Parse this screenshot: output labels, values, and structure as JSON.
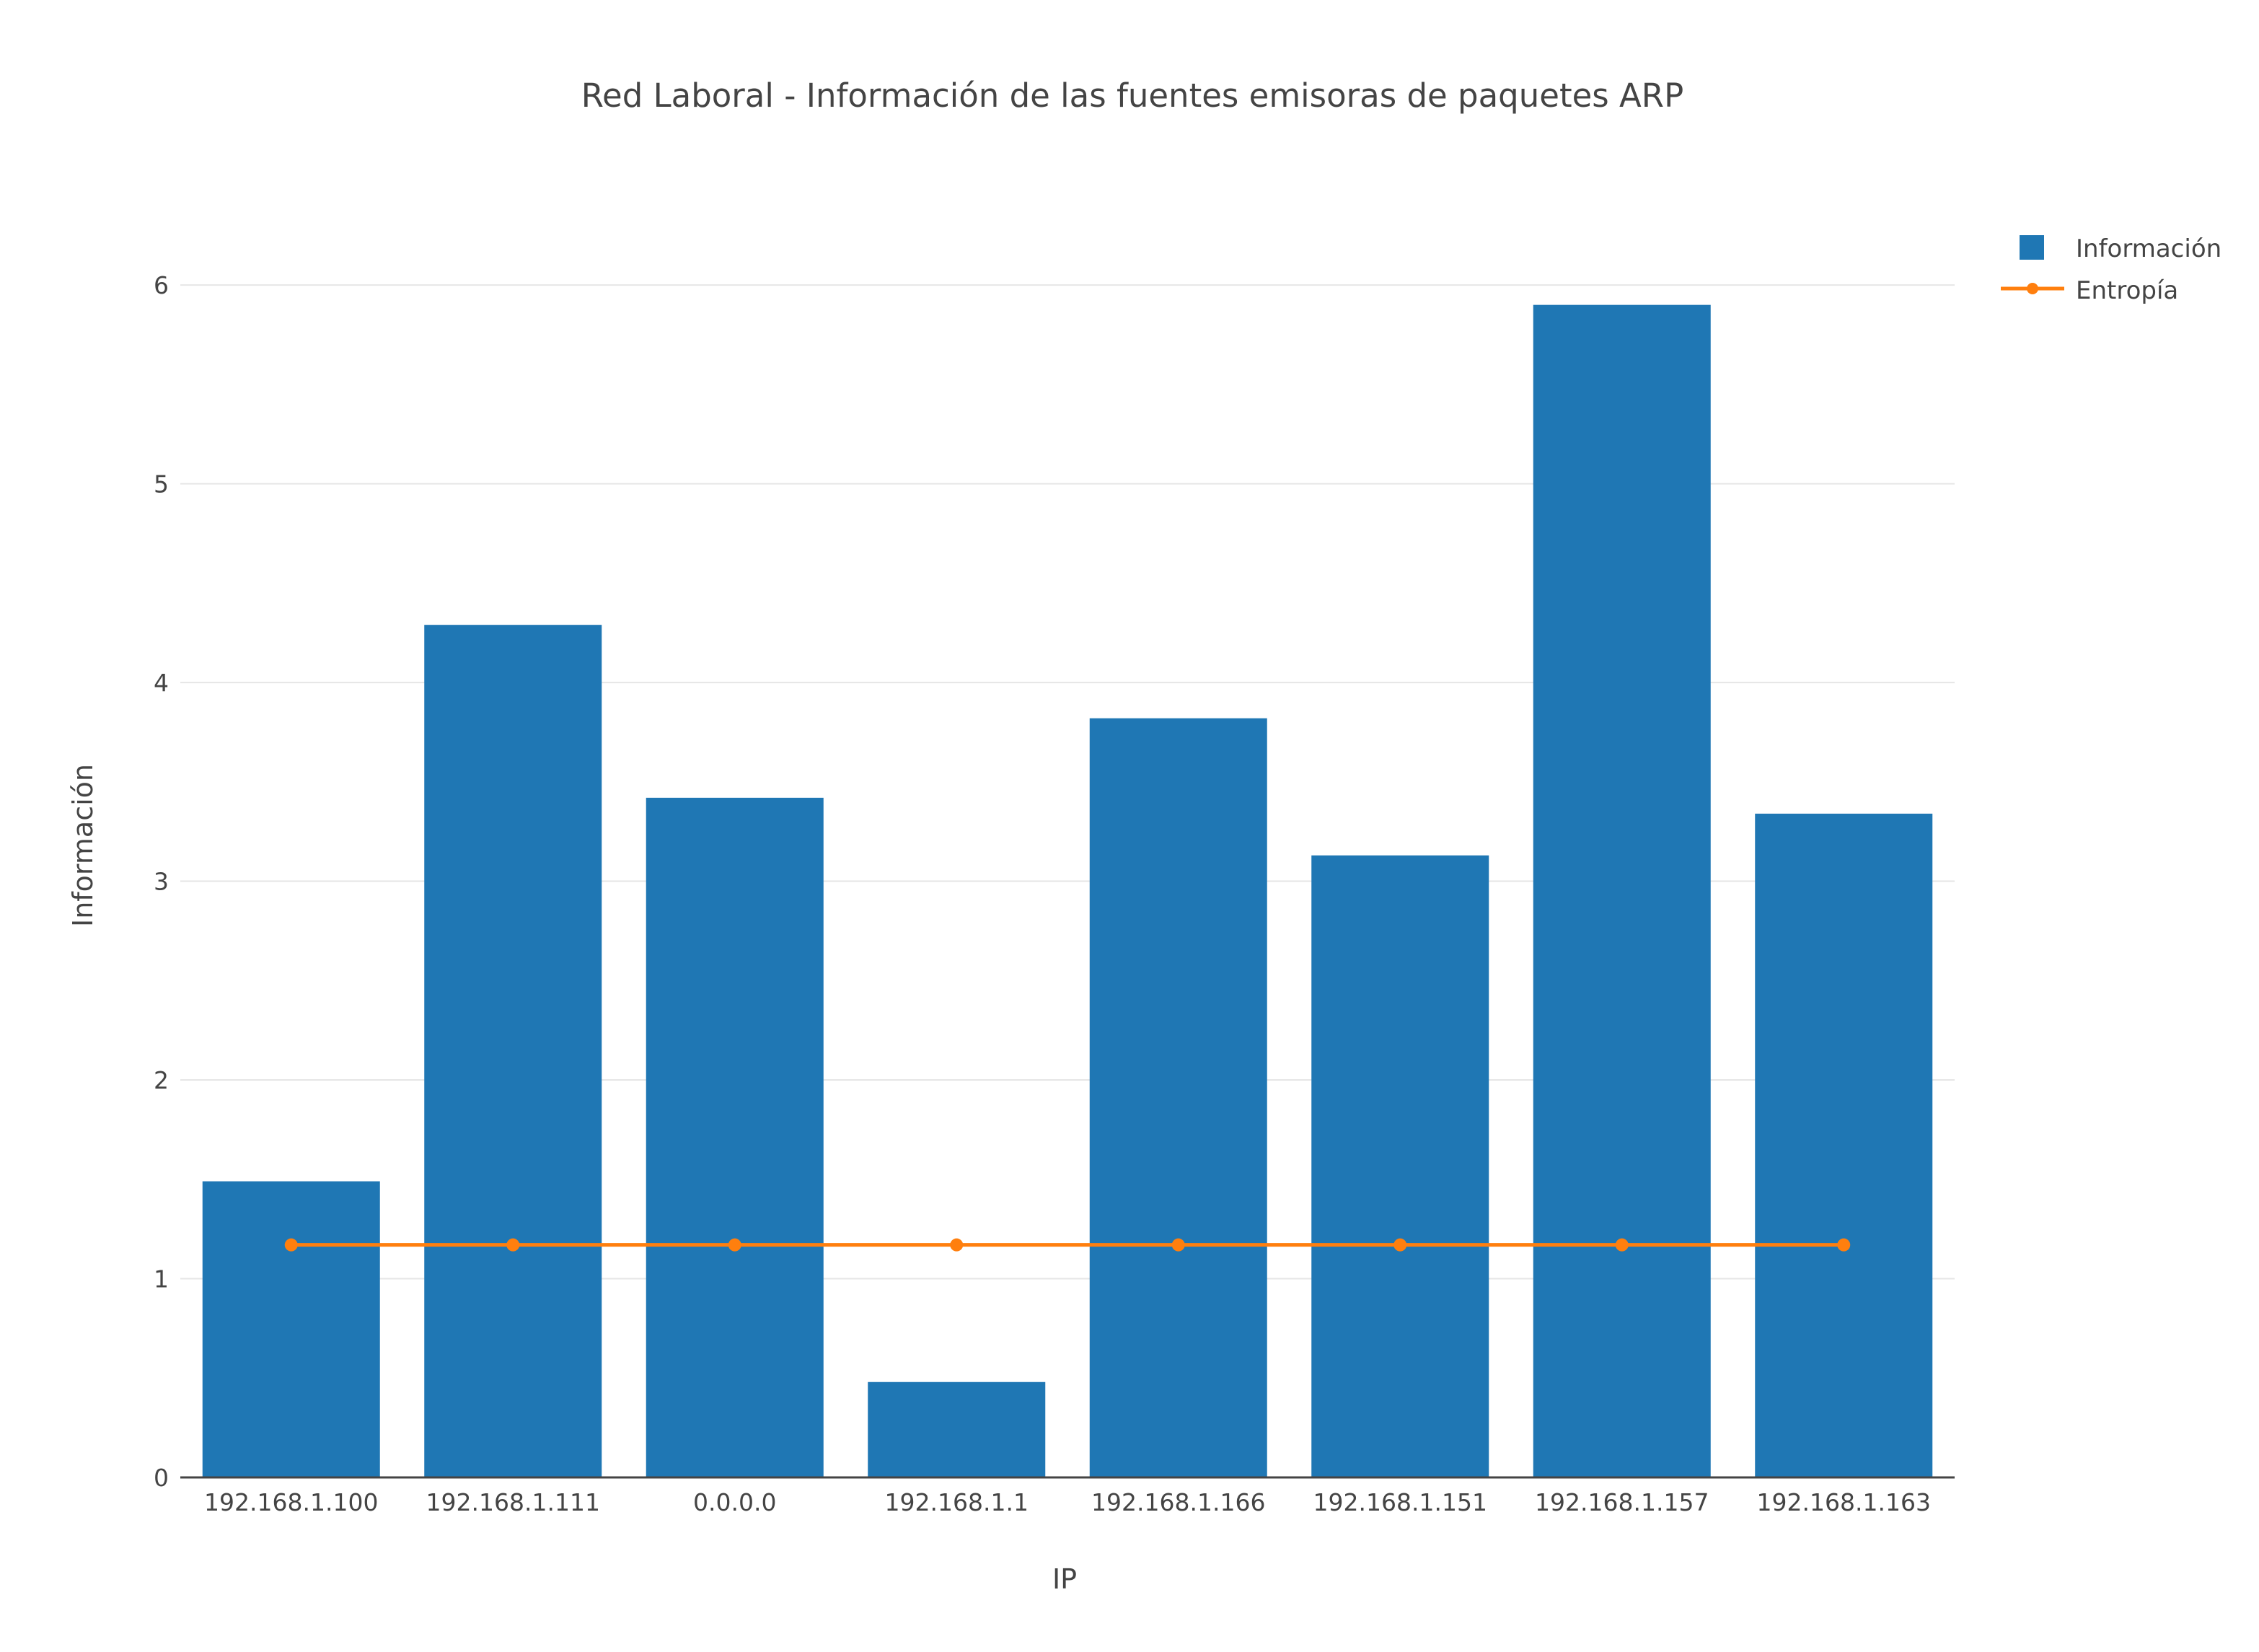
{
  "chart_data": {
    "type": "bar",
    "title": "Red Laboral - Información de las fuentes emisoras de paquetes ARP",
    "xlabel": "IP",
    "ylabel": "Información",
    "categories": [
      "192.168.1.100",
      "192.168.1.111",
      "0.0.0.0",
      "192.168.1.1",
      "192.168.1.166",
      "192.168.1.151",
      "192.168.1.157",
      "192.168.1.163"
    ],
    "series": [
      {
        "name": "Información",
        "type": "bar",
        "color": "#1f77b4",
        "values": [
          1.49,
          4.29,
          3.42,
          0.48,
          3.82,
          3.13,
          5.9,
          3.34
        ]
      },
      {
        "name": "Entropía",
        "type": "line+markers",
        "color": "#ff7f0e",
        "values": [
          1.17,
          1.17,
          1.17,
          1.17,
          1.17,
          1.17,
          1.17,
          1.17
        ]
      }
    ],
    "ylim": [
      0,
      6.2
    ],
    "yticks": [
      0,
      1,
      2,
      3,
      4,
      5,
      6
    ],
    "grid": true,
    "legend_position": "top-right"
  }
}
